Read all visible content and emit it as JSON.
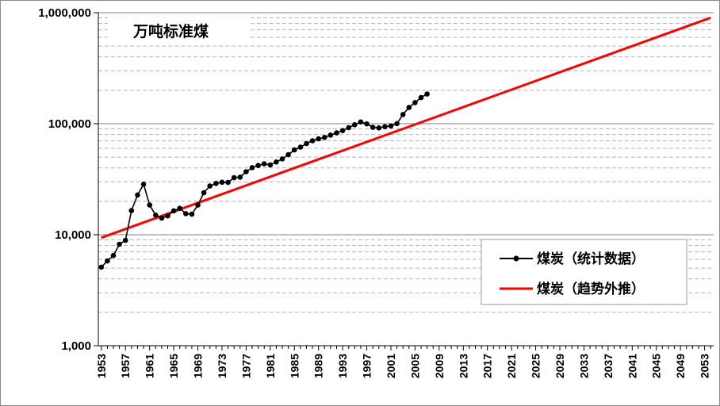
{
  "chart_data": {
    "type": "line",
    "title": "",
    "unit_label": "万吨标准煤",
    "xlabel": "",
    "ylabel": "",
    "y_scale": "log",
    "ylim": [
      1000,
      1000000
    ],
    "xlim": [
      1953,
      2054
    ],
    "y_ticks": [
      1000,
      10000,
      100000,
      1000000
    ],
    "y_tick_labels": [
      "1,000",
      "10,000",
      "100,000",
      "1,000,000"
    ],
    "x_ticks": [
      1953,
      1957,
      1961,
      1965,
      1969,
      1973,
      1977,
      1981,
      1985,
      1989,
      1993,
      1997,
      2001,
      2005,
      2009,
      2013,
      2017,
      2021,
      2025,
      2029,
      2033,
      2037,
      2041,
      2045,
      2049,
      2053
    ],
    "grid": "horizontal dashed",
    "legend_position": "right",
    "series": [
      {
        "name": "煤炭（统计数据）",
        "color": "#000000",
        "marker": "circle",
        "x": [
          1953,
          1954,
          1955,
          1956,
          1957,
          1958,
          1959,
          1960,
          1961,
          1962,
          1963,
          1964,
          1965,
          1966,
          1967,
          1968,
          1969,
          1970,
          1971,
          1972,
          1973,
          1974,
          1975,
          1976,
          1977,
          1978,
          1979,
          1980,
          1981,
          1982,
          1983,
          1984,
          1985,
          1986,
          1987,
          1988,
          1989,
          1990,
          1991,
          1992,
          1993,
          1994,
          1995,
          1996,
          1997,
          1998,
          1999,
          2000,
          2001,
          2002,
          2003,
          2004,
          2005,
          2006,
          2007
        ],
        "y": [
          5100,
          5800,
          6500,
          8200,
          8900,
          16500,
          22800,
          28500,
          18500,
          15000,
          14100,
          14800,
          16400,
          17300,
          15500,
          15300,
          18500,
          23900,
          27500,
          29000,
          29700,
          29600,
          32700,
          33000,
          36900,
          40200,
          42000,
          43500,
          42500,
          45200,
          48200,
          52600,
          58100,
          61500,
          66300,
          70200,
          73100,
          75200,
          78900,
          82600,
          86700,
          92100,
          97900,
          103600,
          99700,
          92700,
          91600,
          94000,
          95500,
          100200,
          121000,
          140000,
          155000,
          172000,
          185000
        ]
      },
      {
        "name": "煤炭（趋势外推）",
        "color": "#ff0000",
        "marker": "none",
        "x": [
          1953,
          2054
        ],
        "y": [
          9400,
          900000
        ]
      }
    ]
  }
}
